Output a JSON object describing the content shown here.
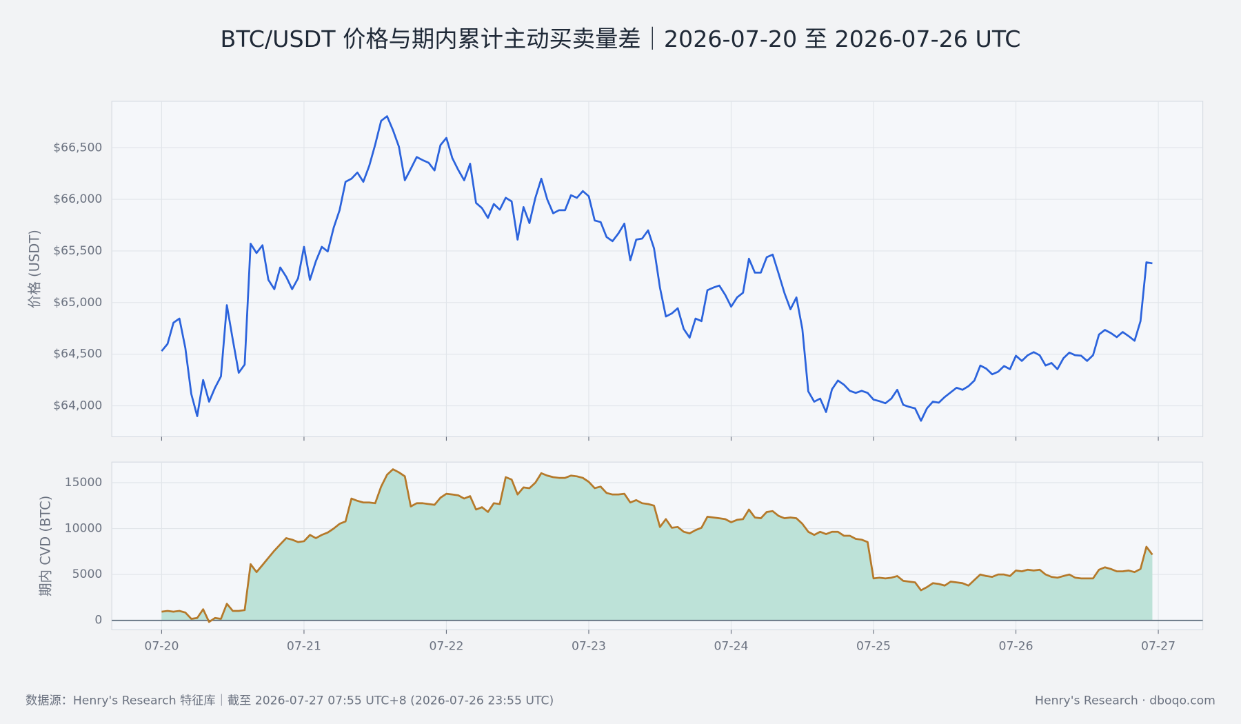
{
  "title": "BTC/USDT 价格与期内累计主动买卖量差｜2026-07-20 至 2026-07-26 UTC",
  "footer": {
    "source": "数据源：Henry's Research 特征库｜截至 2026-07-27 07:55 UTC+8 (2026-07-26 23:55 UTC)",
    "brand": "Henry's Research · dboqo.com"
  },
  "chart_data": [
    {
      "type": "line",
      "y_label": "价格 (USDT)",
      "color": "#2b63dc",
      "grid": true,
      "x": [
        0,
        1,
        2,
        3,
        4,
        5,
        6,
        7,
        8,
        9,
        10,
        11,
        12,
        13,
        14,
        15,
        16,
        17,
        18,
        19,
        20,
        21,
        22,
        23,
        24,
        25,
        26,
        27,
        28,
        29,
        30,
        31,
        32,
        33,
        34,
        35,
        36,
        37,
        38,
        39,
        40,
        41,
        42,
        43,
        44,
        45,
        46,
        47,
        48,
        49,
        50,
        51,
        52,
        53,
        54,
        55,
        56,
        57,
        58,
        59,
        60,
        61,
        62,
        63,
        64,
        65,
        66,
        67,
        68,
        69,
        70,
        71,
        72,
        73,
        74,
        75,
        76,
        77,
        78,
        79,
        80,
        81,
        82,
        83,
        84,
        85,
        86,
        87,
        88,
        89,
        90,
        91,
        92,
        93,
        94,
        95,
        96,
        97,
        98,
        99,
        100,
        101,
        102,
        103,
        104,
        105,
        106,
        107,
        108,
        109,
        110,
        111,
        112,
        113,
        114,
        115,
        116,
        117,
        118,
        119,
        120,
        121,
        122,
        123,
        124,
        125,
        126,
        127,
        128,
        129,
        130,
        131,
        132,
        133,
        134,
        135,
        136,
        137,
        138,
        139,
        140,
        141,
        142,
        143,
        144,
        145,
        146,
        147,
        148,
        149,
        150,
        151,
        152,
        153,
        154,
        155,
        156,
        157,
        158,
        159,
        160,
        161,
        162,
        163,
        164,
        165,
        166,
        167
      ],
      "values": [
        64530,
        64600,
        64805,
        64845,
        64560,
        64115,
        63900,
        64250,
        64040,
        64175,
        64285,
        64975,
        64640,
        64320,
        64400,
        65570,
        65480,
        65555,
        65220,
        65130,
        65340,
        65250,
        65130,
        65235,
        65540,
        65220,
        65400,
        65540,
        65495,
        65725,
        65895,
        66170,
        66200,
        66260,
        66170,
        66325,
        66530,
        66760,
        66805,
        66670,
        66510,
        66185,
        66295,
        66410,
        66380,
        66355,
        66280,
        66525,
        66595,
        66400,
        66285,
        66185,
        66345,
        65965,
        65915,
        65820,
        65955,
        65900,
        66015,
        65980,
        65610,
        65925,
        65770,
        66015,
        66200,
        66000,
        65865,
        65895,
        65895,
        66040,
        66015,
        66080,
        66030,
        65795,
        65780,
        65635,
        65595,
        65670,
        65765,
        65410,
        65610,
        65620,
        65700,
        65525,
        65145,
        64865,
        64895,
        64945,
        64745,
        64660,
        64845,
        64820,
        65120,
        65145,
        65165,
        65075,
        64960,
        65050,
        65095,
        65425,
        65290,
        65290,
        65440,
        65465,
        65280,
        65090,
        64935,
        65050,
        64745,
        64140,
        64040,
        64070,
        63940,
        64160,
        64245,
        64205,
        64145,
        64125,
        64145,
        64125,
        64060,
        64045,
        64025,
        64070,
        64155,
        64010,
        63990,
        63975,
        63855,
        63975,
        64040,
        64030,
        64085,
        64130,
        64175,
        64155,
        64190,
        64245,
        64390,
        64360,
        64305,
        64330,
        64385,
        64355,
        64485,
        64435,
        64490,
        64520,
        64490,
        64390,
        64415,
        64355,
        64460,
        64515,
        64490,
        64485,
        64435,
        64490,
        64690,
        64735,
        64705,
        64665,
        64715,
        64675,
        64630,
        64820,
        65390,
        65380
      ],
      "xlim": [
        -8.4,
        175.5
      ],
      "xticks": [
        0,
        24,
        48,
        72,
        96,
        120,
        144,
        168
      ],
      "ylim": [
        63700,
        66950
      ],
      "yticks": [
        {
          "value": 64000,
          "label": "$64,000"
        },
        {
          "value": 64500,
          "label": "$64,500"
        },
        {
          "value": 65000,
          "label": "$65,000"
        },
        {
          "value": 65500,
          "label": "$65,500"
        },
        {
          "value": 66000,
          "label": "$66,000"
        },
        {
          "value": 66500,
          "label": "$66,500"
        }
      ]
    },
    {
      "type": "area",
      "y_label": "期内 CVD (BTC)",
      "color": "#b5792a",
      "fill": "#bde2d8",
      "grid": true,
      "x": [
        0,
        1,
        2,
        3,
        4,
        5,
        6,
        7,
        8,
        9,
        10,
        11,
        12,
        13,
        14,
        15,
        16,
        17,
        18,
        19,
        20,
        21,
        22,
        23,
        24,
        25,
        26,
        27,
        28,
        29,
        30,
        31,
        32,
        33,
        34,
        35,
        36,
        37,
        38,
        39,
        40,
        41,
        42,
        43,
        44,
        45,
        46,
        47,
        48,
        49,
        50,
        51,
        52,
        53,
        54,
        55,
        56,
        57,
        58,
        59,
        60,
        61,
        62,
        63,
        64,
        65,
        66,
        67,
        68,
        69,
        70,
        71,
        72,
        73,
        74,
        75,
        76,
        77,
        78,
        79,
        80,
        81,
        82,
        83,
        84,
        85,
        86,
        87,
        88,
        89,
        90,
        91,
        92,
        93,
        94,
        95,
        96,
        97,
        98,
        99,
        100,
        101,
        102,
        103,
        104,
        105,
        106,
        107,
        108,
        109,
        110,
        111,
        112,
        113,
        114,
        115,
        116,
        117,
        118,
        119,
        120,
        121,
        122,
        123,
        124,
        125,
        126,
        127,
        128,
        129,
        130,
        131,
        132,
        133,
        134,
        135,
        136,
        137,
        138,
        139,
        140,
        141,
        142,
        143,
        144,
        145,
        146,
        147,
        148,
        149,
        150,
        151,
        152,
        153,
        154,
        155,
        156,
        157,
        158,
        159,
        160,
        161,
        162,
        163,
        164,
        165,
        166,
        167
      ],
      "values": [
        950,
        1030,
        950,
        1030,
        860,
        170,
        260,
        1210,
        -170,
        260,
        170,
        1810,
        1030,
        1030,
        1120,
        6120,
        5260,
        6030,
        6810,
        7590,
        8280,
        8960,
        8790,
        8530,
        8620,
        9310,
        8960,
        9310,
        9570,
        10000,
        10520,
        10780,
        13270,
        13020,
        12840,
        12840,
        12760,
        14570,
        15860,
        16460,
        16120,
        15690,
        12410,
        12760,
        12760,
        12670,
        12590,
        13360,
        13790,
        13710,
        13620,
        13270,
        13530,
        12070,
        12330,
        11810,
        12760,
        12670,
        15600,
        15340,
        13710,
        14480,
        14400,
        15000,
        16030,
        15770,
        15600,
        15520,
        15520,
        15770,
        15690,
        15520,
        15090,
        14400,
        14570,
        13880,
        13710,
        13710,
        13790,
        12840,
        13100,
        12760,
        12670,
        12500,
        10170,
        11030,
        10090,
        10170,
        9650,
        9480,
        9830,
        10090,
        11290,
        11210,
        11120,
        11030,
        10690,
        10950,
        11030,
        12070,
        11210,
        11120,
        11810,
        11900,
        11380,
        11120,
        11210,
        11120,
        10520,
        9650,
        9310,
        9650,
        9400,
        9650,
        9650,
        9220,
        9220,
        8880,
        8790,
        8530,
        4570,
        4650,
        4570,
        4650,
        4830,
        4310,
        4220,
        4140,
        3280,
        3620,
        4050,
        3970,
        3790,
        4220,
        4140,
        4050,
        3790,
        4400,
        5000,
        4830,
        4740,
        5000,
        5000,
        4830,
        5430,
        5340,
        5520,
        5430,
        5520,
        5000,
        4740,
        4650,
        4830,
        5000,
        4650,
        4570,
        4570,
        4570,
        5520,
        5780,
        5600,
        5340,
        5340,
        5430,
        5260,
        5600,
        8020,
        7160
      ],
      "xlim": [
        -8.4,
        175.5
      ],
      "xticks": [
        {
          "value": 0,
          "label": "07-20"
        },
        {
          "value": 24,
          "label": "07-21"
        },
        {
          "value": 48,
          "label": "07-22"
        },
        {
          "value": 72,
          "label": "07-23"
        },
        {
          "value": 96,
          "label": "07-24"
        },
        {
          "value": 120,
          "label": "07-25"
        },
        {
          "value": 144,
          "label": "07-26"
        },
        {
          "value": 168,
          "label": "07-27"
        }
      ],
      "ylim": [
        -1030,
        17240
      ],
      "yticks": [
        0,
        5000,
        10000,
        15000
      ]
    }
  ]
}
